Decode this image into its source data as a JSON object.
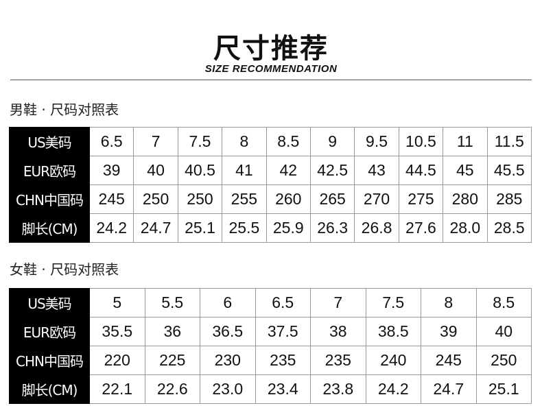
{
  "header": {
    "title": "尺寸推荐",
    "subtitle": "SIZE RECOMMENDATION"
  },
  "row_labels": [
    "US美码",
    "EUR欧码",
    "CHN中国码",
    "脚长(CM)"
  ],
  "men": {
    "label": "男鞋 · 尺码对照表",
    "rows": [
      [
        "6.5",
        "7",
        "7.5",
        "8",
        "8.5",
        "9",
        "9.5",
        "10.5",
        "11",
        "11.5"
      ],
      [
        "39",
        "40",
        "40.5",
        "41",
        "42",
        "42.5",
        "43",
        "44.5",
        "45",
        "45.5"
      ],
      [
        "245",
        "250",
        "250",
        "255",
        "260",
        "265",
        "270",
        "275",
        "280",
        "285"
      ],
      [
        "24.2",
        "24.7",
        "25.1",
        "25.5",
        "25.9",
        "26.3",
        "26.8",
        "27.6",
        "28.0",
        "28.5"
      ]
    ]
  },
  "women": {
    "label": "女鞋 · 尺码对照表",
    "rows": [
      [
        "5",
        "5.5",
        "6",
        "6.5",
        "7",
        "7.5",
        "8",
        "8.5"
      ],
      [
        "35.5",
        "36",
        "36.5",
        "37.5",
        "38",
        "38.5",
        "39",
        "40"
      ],
      [
        "220",
        "225",
        "230",
        "235",
        "235",
        "240",
        "245",
        "250"
      ],
      [
        "22.1",
        "22.6",
        "23.0",
        "23.4",
        "23.8",
        "24.2",
        "24.7",
        "25.1"
      ]
    ]
  }
}
